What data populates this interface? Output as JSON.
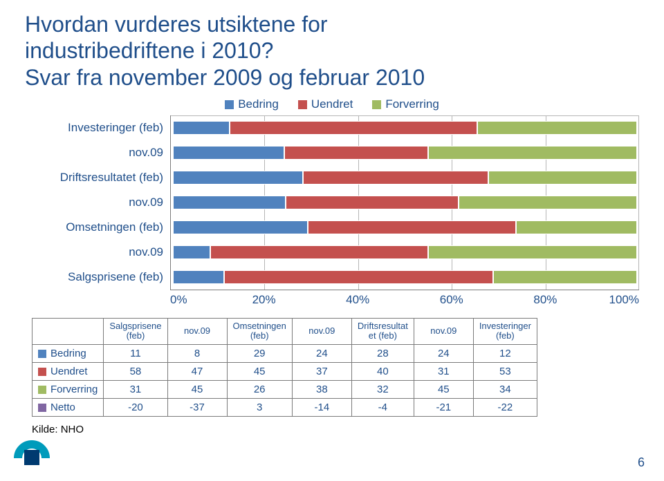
{
  "title_line1": "Hvordan vurderes utsiktene for",
  "title_line2": "industribedriftene i 2010?",
  "title_line3": "Svar fra november 2009 og februar 2010",
  "legend": {
    "bedring": "Bedring",
    "uendret": "Uendret",
    "forverring": "Forverring"
  },
  "colors": {
    "bedring": "#5082be",
    "uendret": "#c4504e",
    "forverring": "#a0bb62",
    "netto": "#8066a2",
    "text": "#1f4e8a",
    "grid": "#b5b5b5"
  },
  "chart": {
    "type": "stacked-bar-horizontal",
    "xlim": [
      0,
      100
    ],
    "xticks": [
      "0%",
      "20%",
      "40%",
      "60%",
      "80%",
      "100%"
    ],
    "categories": [
      {
        "label": "Investeringer (feb)",
        "bedring": 12,
        "uendret": 53,
        "forverring": 34
      },
      {
        "label": "nov.09",
        "bedring": 24,
        "uendret": 31,
        "forverring": 45
      },
      {
        "label": "Driftsresultatet (feb)",
        "bedring": 28,
        "uendret": 40,
        "forverring": 32
      },
      {
        "label": "nov.09",
        "bedring": 24,
        "uendret": 37,
        "forverring": 38
      },
      {
        "label": "Omsetningen (feb)",
        "bedring": 29,
        "uendret": 45,
        "forverring": 26
      },
      {
        "label": "nov.09",
        "bedring": 8,
        "uendret": 47,
        "forverring": 45
      },
      {
        "label": "Salgsprisene (feb)",
        "bedring": 11,
        "uendret": 58,
        "forverring": 31
      }
    ]
  },
  "table": {
    "columns": [
      "",
      "Salgsprisene (feb)",
      "nov.09",
      "Omsetningen (feb)",
      "nov.09",
      "Driftsresultatet (feb)",
      "nov.09",
      "Investeringer (feb)"
    ],
    "columns_short": [
      "",
      "Salgsprisene\n(feb)",
      "nov.09",
      "Omsetningen\n(feb)",
      "nov.09",
      "Driftsresultat\net (feb)",
      "nov.09",
      "Investeringer\n(feb)"
    ],
    "rows": [
      {
        "label": "Bedring",
        "color": "#5082be",
        "cells": [
          11,
          8,
          29,
          24,
          28,
          24,
          12
        ]
      },
      {
        "label": "Uendret",
        "color": "#c4504e",
        "cells": [
          58,
          47,
          45,
          37,
          40,
          31,
          53
        ]
      },
      {
        "label": "Forverring",
        "color": "#a0bb62",
        "cells": [
          31,
          45,
          26,
          38,
          32,
          45,
          34
        ]
      },
      {
        "label": "Netto",
        "color": "#8066a2",
        "cells": [
          -20,
          -37,
          3,
          -14,
          -4,
          -21,
          -22
        ]
      }
    ]
  },
  "source": "Kilde: NHO",
  "page_number": "6",
  "logo_colors": {
    "arc": "#009bbb",
    "square": "#003a70"
  }
}
